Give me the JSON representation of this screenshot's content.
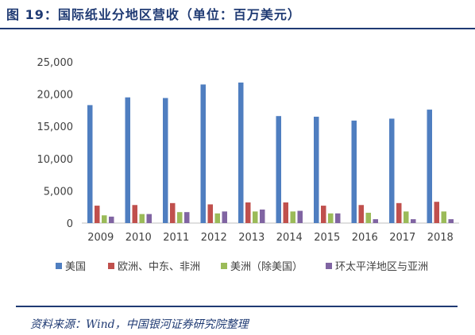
{
  "title": "图 19：国际纸业分地区营收（单位：百万美元）",
  "source": "资料来源：Wind，中国银河证券研究院整理",
  "chart_data": {
    "type": "bar",
    "categories": [
      "2009",
      "2010",
      "2011",
      "2012",
      "2013",
      "2014",
      "2015",
      "2016",
      "2017",
      "2018"
    ],
    "ylim": [
      0,
      25000
    ],
    "yticks": [
      0,
      5000,
      10000,
      15000,
      20000,
      25000
    ],
    "ytick_labels": [
      "0",
      "5,000",
      "10,000",
      "15,000",
      "20,000",
      "25,000"
    ],
    "grid": false,
    "legend_position": "bottom",
    "series": [
      {
        "name": "美国",
        "color": "#4f7ec0",
        "values": [
          18300,
          19500,
          19400,
          21500,
          21800,
          16600,
          16500,
          15900,
          16200,
          17600
        ]
      },
      {
        "name": "欧洲、中东、非洲",
        "color": "#c0504d",
        "values": [
          2700,
          2800,
          3100,
          2900,
          3200,
          3200,
          2700,
          2800,
          3100,
          3300
        ]
      },
      {
        "name": "美洲（除美国）",
        "color": "#9bbb59",
        "values": [
          1200,
          1400,
          1700,
          1500,
          1800,
          1800,
          1500,
          1600,
          1800,
          1800
        ]
      },
      {
        "name": "环太平洋地区与亚洲",
        "color": "#8064a2",
        "values": [
          1000,
          1400,
          1700,
          1800,
          2100,
          1900,
          1500,
          600,
          600,
          600
        ]
      }
    ]
  }
}
